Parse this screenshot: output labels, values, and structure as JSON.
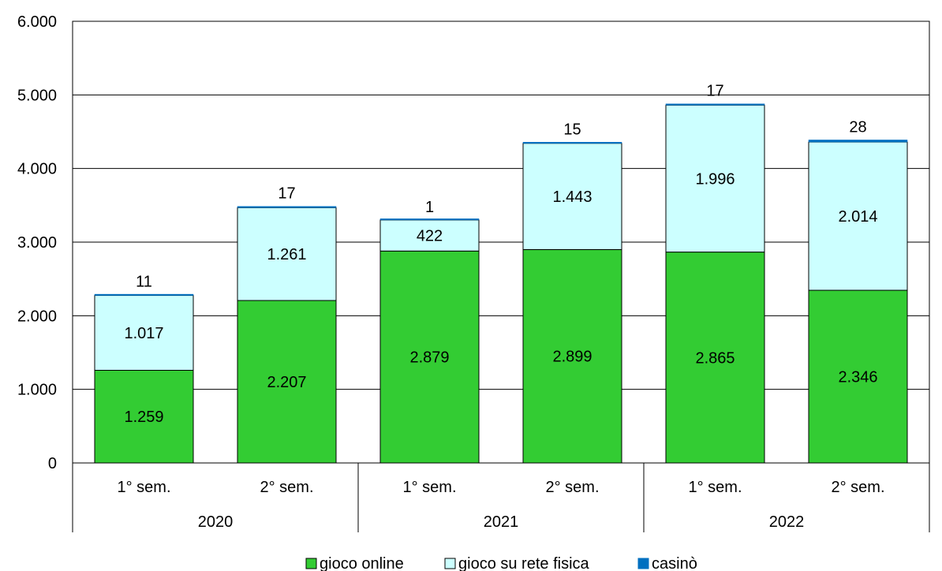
{
  "chart_data": {
    "type": "bar",
    "stacked": true,
    "title": "",
    "xlabel": "",
    "ylabel": "",
    "ylim": [
      0,
      6000
    ],
    "yticks": [
      "0",
      "1.000",
      "2.000",
      "3.000",
      "4.000",
      "5.000",
      "6.000"
    ],
    "ytick_values": [
      0,
      1000,
      2000,
      3000,
      4000,
      5000,
      6000
    ],
    "grid": true,
    "legend_position": "bottom",
    "categories": [
      "1° sem.",
      "2° sem.",
      "1° sem.",
      "2° sem.",
      "1° sem.",
      "2° sem."
    ],
    "groups": [
      {
        "label": "2020",
        "span": 2
      },
      {
        "label": "2021",
        "span": 2
      },
      {
        "label": "2022",
        "span": 2
      }
    ],
    "series": [
      {
        "name": "gioco online",
        "color": "#33CC33",
        "values": [
          1259,
          2207,
          2879,
          2899,
          2865,
          2346
        ],
        "labels": [
          "1.259",
          "2.207",
          "2.879",
          "2.899",
          "2.865",
          "2.346"
        ]
      },
      {
        "name": "gioco su rete fisica",
        "color": "#CCFFFF",
        "values": [
          1017,
          1261,
          422,
          1443,
          1996,
          2014
        ],
        "labels": [
          "1.017",
          "1.261",
          "422",
          "1.443",
          "1.996",
          "2.014"
        ]
      },
      {
        "name": "casinò",
        "color": "#0070C0",
        "values": [
          11,
          17,
          1,
          15,
          17,
          28
        ],
        "labels": [
          "11",
          "17",
          "1",
          "15",
          "17",
          "28"
        ]
      }
    ]
  }
}
